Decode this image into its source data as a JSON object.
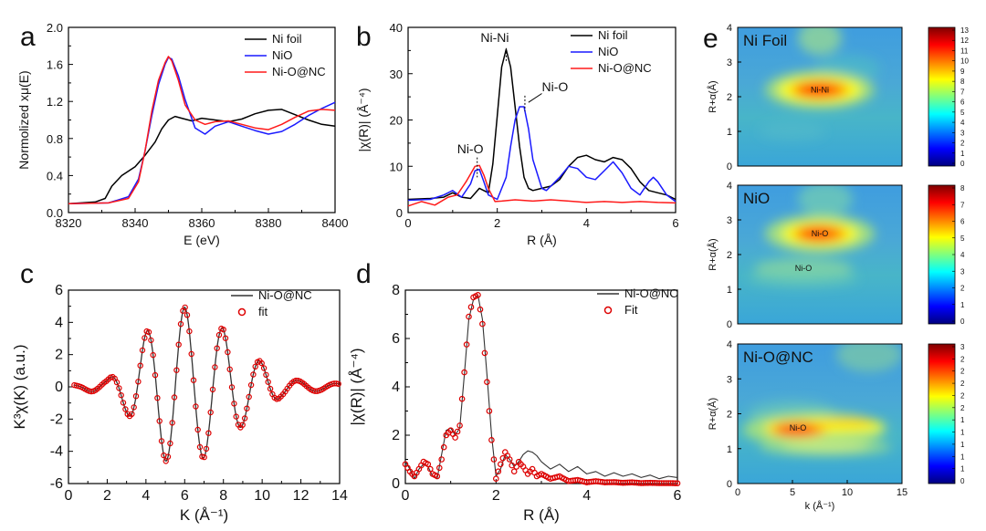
{
  "chart_data": [
    {
      "id": "a",
      "panel_label": "a",
      "type": "line",
      "xlabel": "E (eV)",
      "ylabel": "Normolized xμ(E)",
      "xlim": [
        8320,
        8400
      ],
      "ylim": [
        -0.1,
        2.0
      ],
      "xticks": [
        "8320",
        "8340",
        "8360",
        "8380",
        "8400"
      ],
      "yticks": [
        "0.0",
        "0.4",
        "0.8",
        "1.2",
        "1.6",
        "2.0"
      ],
      "legend": [
        "Ni foil",
        "NiO",
        "Ni-O@NC"
      ],
      "colors": [
        "#000000",
        "#1a1aff",
        "#ff1a1a"
      ],
      "series": [
        {
          "name": "Ni foil",
          "x": [
            8320,
            8328,
            8331,
            8333,
            8336,
            8340,
            8343,
            8346,
            8348,
            8350,
            8352,
            8354,
            8357,
            8360,
            8364,
            8368,
            8372,
            8376,
            8380,
            8384,
            8388,
            8392,
            8396,
            8400
          ],
          "y": [
            0.0,
            0.02,
            0.06,
            0.2,
            0.32,
            0.42,
            0.55,
            0.7,
            0.85,
            0.95,
            0.99,
            0.97,
            0.94,
            0.97,
            0.95,
            0.93,
            0.96,
            1.02,
            1.06,
            1.07,
            1.01,
            0.95,
            0.9,
            0.88
          ]
        },
        {
          "name": "NiO",
          "x": [
            8320,
            8332,
            8338,
            8341,
            8343,
            8345,
            8347,
            8349,
            8350,
            8351,
            8353,
            8355,
            8358,
            8361,
            8364,
            8368,
            8372,
            8376,
            8380,
            8384,
            8388,
            8392,
            8396,
            8400
          ],
          "y": [
            0.0,
            0.01,
            0.08,
            0.28,
            0.6,
            1.0,
            1.35,
            1.58,
            1.66,
            1.64,
            1.45,
            1.18,
            0.86,
            0.79,
            0.88,
            0.93,
            0.88,
            0.83,
            0.79,
            0.82,
            0.9,
            1.0,
            1.08,
            1.15
          ]
        },
        {
          "name": "Ni-O@NC",
          "x": [
            8320,
            8332,
            8338,
            8341,
            8343,
            8345,
            8347,
            8349,
            8350,
            8351,
            8353,
            8355,
            8358,
            8361,
            8364,
            8368,
            8372,
            8376,
            8380,
            8384,
            8388,
            8392,
            8396,
            8400
          ],
          "y": [
            0.0,
            0.01,
            0.06,
            0.25,
            0.6,
            1.05,
            1.4,
            1.6,
            1.67,
            1.62,
            1.4,
            1.12,
            0.95,
            0.9,
            0.93,
            0.94,
            0.9,
            0.86,
            0.84,
            0.9,
            0.98,
            1.05,
            1.07,
            1.06
          ]
        }
      ]
    },
    {
      "id": "b",
      "panel_label": "b",
      "type": "line",
      "xlabel": "R (Å)",
      "ylabel": "|χ(R)| (Å⁻⁴)",
      "xlim": [
        0,
        6
      ],
      "ylim": [
        -2,
        40
      ],
      "xticks": [
        "0",
        "2",
        "4",
        "6"
      ],
      "yticks": [
        "0",
        "10",
        "20",
        "30",
        "40"
      ],
      "legend": [
        "Ni foil",
        "NiO",
        "Ni-O@NC"
      ],
      "colors": [
        "#000000",
        "#1a1aff",
        "#ff1a1a"
      ],
      "annotations": [
        {
          "text": "Ni-Ni",
          "x": 2.2,
          "y": 35.5
        },
        {
          "text": "Ni-O",
          "x": 1.5,
          "y": 8.5
        },
        {
          "text": "Ni-O",
          "x": 2.6,
          "y": 22.5
        }
      ],
      "series": [
        {
          "name": "Ni foil",
          "x": [
            0,
            0.5,
            0.8,
            1.0,
            1.2,
            1.4,
            1.6,
            1.8,
            1.9,
            2.0,
            2.1,
            2.2,
            2.3,
            2.4,
            2.5,
            2.6,
            2.7,
            2.8,
            3.0,
            3.2,
            3.4,
            3.6,
            3.8,
            4.0,
            4.2,
            4.4,
            4.6,
            4.8,
            5.0,
            5.2,
            5.4,
            5.6,
            5.8,
            6.0
          ],
          "y": [
            1.0,
            1.2,
            1.5,
            2.5,
            1.5,
            1.2,
            3.5,
            2.5,
            9,
            20,
            31,
            35,
            31,
            22,
            13,
            6,
            3.5,
            3.0,
            3.5,
            4.0,
            5.5,
            8.5,
            10.5,
            11,
            10,
            9.5,
            10.5,
            10,
            8,
            5,
            3,
            2.5,
            2.0,
            1.0
          ]
        },
        {
          "name": "NiO",
          "x": [
            0,
            0.5,
            0.8,
            1.0,
            1.2,
            1.4,
            1.5,
            1.6,
            1.7,
            1.8,
            2.0,
            2.2,
            2.3,
            2.4,
            2.5,
            2.6,
            2.7,
            2.8,
            3.0,
            3.1,
            3.2,
            3.4,
            3.6,
            3.8,
            4.0,
            4.2,
            4.4,
            4.6,
            4.8,
            5.0,
            5.2,
            5.4,
            5.5,
            5.6,
            5.8,
            6.0
          ],
          "y": [
            0.8,
            1.0,
            2.0,
            3.0,
            1.5,
            4.5,
            7.5,
            7.8,
            5.0,
            2.0,
            1.0,
            6,
            13,
            19,
            22,
            22,
            17,
            10,
            3.5,
            3.0,
            4.0,
            6.0,
            8.5,
            8,
            6,
            5.5,
            7.5,
            9.5,
            7,
            3.5,
            2,
            5,
            6,
            5,
            2,
            0.5
          ]
        },
        {
          "name": "Ni-O@NC",
          "x": [
            0,
            0.3,
            0.6,
            0.9,
            1.1,
            1.3,
            1.5,
            1.6,
            1.7,
            1.8,
            1.95,
            2.1,
            2.4,
            2.8,
            3.2,
            3.6,
            4.0,
            4.4,
            4.8,
            5.2,
            5.6,
            6.0
          ],
          "y": [
            -0.5,
            0.5,
            -0.3,
            1.5,
            2.0,
            5.0,
            8.5,
            8.7,
            6.5,
            3.5,
            0.5,
            0.6,
            0.9,
            0.6,
            0.9,
            0.6,
            0.3,
            0.5,
            0.3,
            0.5,
            0.3,
            0.2
          ]
        }
      ]
    },
    {
      "id": "c",
      "panel_label": "c",
      "type": "line+scatter",
      "xlabel": "K (Å⁻¹)",
      "ylabel": "K³χ(K) (a.u.)",
      "xlim": [
        0,
        14
      ],
      "ylim": [
        -6,
        6
      ],
      "xticks": [
        "0",
        "2",
        "4",
        "6",
        "8",
        "10",
        "12",
        "14"
      ],
      "yticks": [
        "-6",
        "-4",
        "-2",
        "0",
        "2",
        "4",
        "6"
      ],
      "legend": [
        "Ni-O@NC",
        "fit"
      ],
      "colors": [
        "#333333",
        "#dd0000"
      ],
      "waveform": [
        {
          "k": 0.5,
          "a": 0.12
        },
        {
          "k": 1.2,
          "a": 0.3
        },
        {
          "k": 2.0,
          "a": 0.4
        },
        {
          "k": 3.0,
          "a": 1.6
        },
        {
          "k": 4.0,
          "a": 3.4
        },
        {
          "k": 5.0,
          "a": 4.6
        },
        {
          "k": 6.0,
          "a": 4.95
        },
        {
          "k": 7.0,
          "a": 4.4
        },
        {
          "k": 8.0,
          "a": 3.6
        },
        {
          "k": 9.0,
          "a": 2.4
        },
        {
          "k": 10.0,
          "a": 1.5
        },
        {
          "k": 11.0,
          "a": 0.6
        },
        {
          "k": 12.0,
          "a": 0.35
        },
        {
          "k": 13.0,
          "a": 0.25
        },
        {
          "k": 14.0,
          "a": 0.2
        }
      ],
      "wave_period": 1.95,
      "wave_phase": 6.0
    },
    {
      "id": "d",
      "panel_label": "d",
      "type": "line+scatter",
      "xlabel": "R (Å)",
      "ylabel": "|χ(R)| (Å⁻⁴)",
      "xlim": [
        0,
        6
      ],
      "ylim": [
        0,
        8
      ],
      "xticks": [
        "0",
        "2",
        "4",
        "6"
      ],
      "yticks": [
        "0",
        "2",
        "4",
        "6",
        "8"
      ],
      "legend": [
        "Ni-O@NC",
        "Fit"
      ],
      "colors": [
        "#333333",
        "#dd0000"
      ],
      "series": [
        {
          "name": "Ni-O@NC",
          "x": [
            0,
            0.1,
            0.2,
            0.3,
            0.4,
            0.5,
            0.6,
            0.7,
            0.8,
            0.9,
            1.0,
            1.1,
            1.2,
            1.3,
            1.4,
            1.5,
            1.6,
            1.7,
            1.8,
            1.9,
            2.0,
            2.1,
            2.2,
            2.3,
            2.4,
            2.5,
            2.6,
            2.7,
            2.8,
            2.9,
            3.0,
            3.2,
            3.4,
            3.6,
            3.8,
            4.0,
            4.2,
            4.4,
            4.6,
            4.8,
            5.0,
            5.2,
            5.4,
            5.6,
            5.8,
            6.0
          ],
          "y": [
            0.9,
            0.6,
            0.2,
            0.6,
            0.8,
            0.7,
            0.3,
            0.2,
            1.2,
            2.2,
            2.3,
            2.0,
            2.3,
            4.5,
            6.8,
            7.6,
            7.8,
            6.8,
            4.5,
            2.0,
            0.3,
            0.6,
            1.2,
            1.0,
            0.7,
            0.9,
            1.2,
            1.35,
            1.3,
            1.15,
            0.9,
            0.6,
            0.8,
            0.5,
            0.7,
            0.4,
            0.5,
            0.3,
            0.45,
            0.3,
            0.4,
            0.25,
            0.35,
            0.2,
            0.3,
            0.25
          ]
        },
        {
          "name": "Fit",
          "x": [
            0,
            0.1,
            0.2,
            0.3,
            0.4,
            0.5,
            0.6,
            0.7,
            0.8,
            0.9,
            1.0,
            1.1,
            1.2,
            1.3,
            1.4,
            1.5,
            1.6,
            1.7,
            1.8,
            1.9,
            2.0,
            2.1,
            2.2,
            2.3,
            2.4,
            2.5,
            2.6,
            2.7,
            2.8,
            2.9,
            3.0,
            3.2,
            3.4,
            3.6,
            3.8,
            4.0,
            4.2,
            4.4,
            4.6,
            4.8,
            5.0,
            5.2,
            5.4,
            5.6,
            5.8,
            6.0
          ],
          "y": [
            0.8,
            0.5,
            0.3,
            0.6,
            0.9,
            0.8,
            0.4,
            0.3,
            1.0,
            2.0,
            2.2,
            1.9,
            2.4,
            4.6,
            6.9,
            7.7,
            7.8,
            6.6,
            4.2,
            1.8,
            0.2,
            0.8,
            1.3,
            1.0,
            0.5,
            0.9,
            0.7,
            0.4,
            0.6,
            0.3,
            0.4,
            0.2,
            0.3,
            0.1,
            0.15,
            0.05,
            0.1,
            0.05,
            0.06,
            0.03,
            0.05,
            0.02,
            0.03,
            0.02,
            0.02,
            0.01
          ]
        }
      ]
    },
    {
      "id": "e1",
      "panel_label": "e",
      "type": "heatmap",
      "title": "Ni Foil",
      "xlabel": "",
      "ylabel": "R+α(Å)",
      "xlim": [
        0,
        15
      ],
      "ylim": [
        0,
        4
      ],
      "xticks": [],
      "yticks": [
        "0",
        "1",
        "2",
        "3",
        "4"
      ],
      "colorbar": [
        "0",
        "1",
        "2",
        "3",
        "4",
        "5",
        "6",
        "7",
        "8",
        "9",
        "10",
        "11",
        "12",
        "13"
      ],
      "hotspot_label": "Ni-Ni"
    },
    {
      "id": "e2",
      "panel_label": "",
      "type": "heatmap",
      "title": "NiO",
      "xlabel": "",
      "ylabel": "R+α(Å)",
      "xlim": [
        0,
        15
      ],
      "ylim": [
        0,
        4
      ],
      "xticks": [],
      "yticks": [
        "0",
        "1",
        "2",
        "3",
        "4"
      ],
      "colorbar": [
        "0",
        "1",
        "2",
        "3",
        "4",
        "5",
        "6",
        "7",
        "8"
      ],
      "hotspot_label": "Ni-O",
      "secondary_label": "Ni-O"
    },
    {
      "id": "e3",
      "panel_label": "",
      "type": "heatmap",
      "title": "Ni-O@NC",
      "xlabel": "k (Å⁻¹)",
      "ylabel": "R+α(Å)",
      "xlim": [
        0,
        15
      ],
      "ylim": [
        0,
        4
      ],
      "xticks": [
        "0",
        "5",
        "10",
        "15"
      ],
      "yticks": [
        "0",
        "1",
        "2",
        "3",
        "4"
      ],
      "colorbar": [
        "0",
        "1",
        "1",
        "1",
        "1",
        "1",
        "2",
        "2",
        "2",
        "2",
        "2",
        "3"
      ],
      "hotspot_label": "Ni-O"
    }
  ]
}
